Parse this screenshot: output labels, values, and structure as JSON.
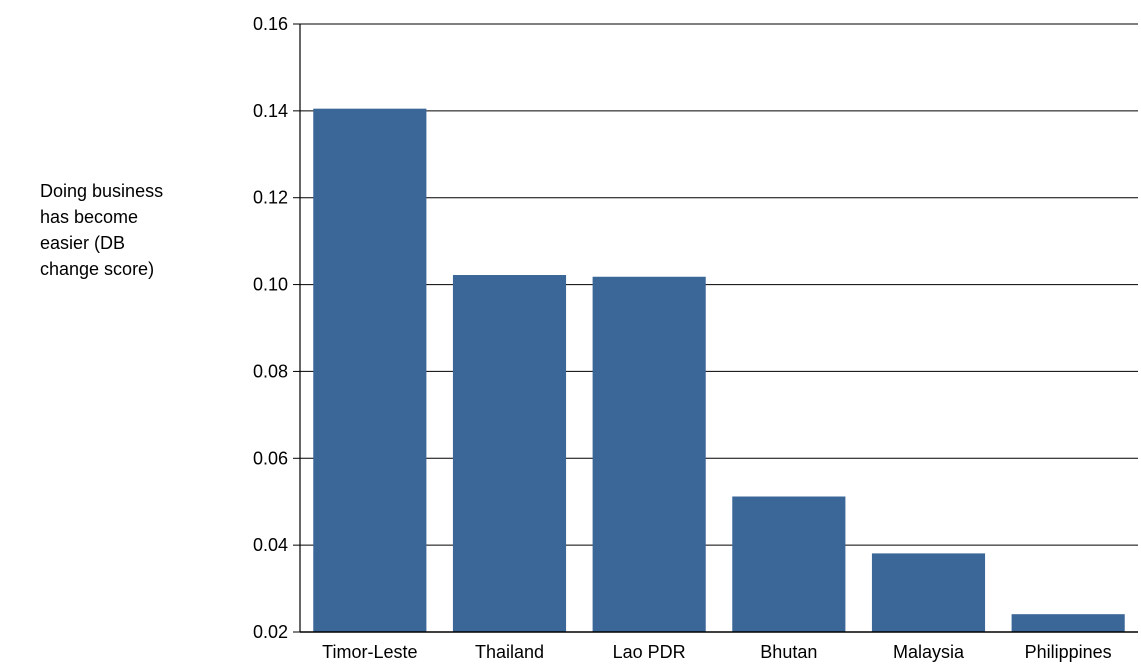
{
  "chart_data": {
    "type": "bar",
    "title": "",
    "xlabel": "",
    "ylabel": "Doing business has become easier (DB change score)",
    "categories": [
      "Timor-Leste",
      "Thailand",
      "Lao PDR",
      "Bhutan",
      "Malaysia",
      "Philippines"
    ],
    "values": [
      0.1405,
      0.1022,
      0.1018,
      0.0512,
      0.0381,
      0.0241
    ],
    "ylim": [
      0.02,
      0.16
    ],
    "yticks": [
      "0.02",
      "0.04",
      "0.06",
      "0.08",
      "0.10",
      "0.12",
      "0.14",
      "0.16"
    ],
    "grid": "horizontal",
    "bar_color": "#3b6698"
  }
}
